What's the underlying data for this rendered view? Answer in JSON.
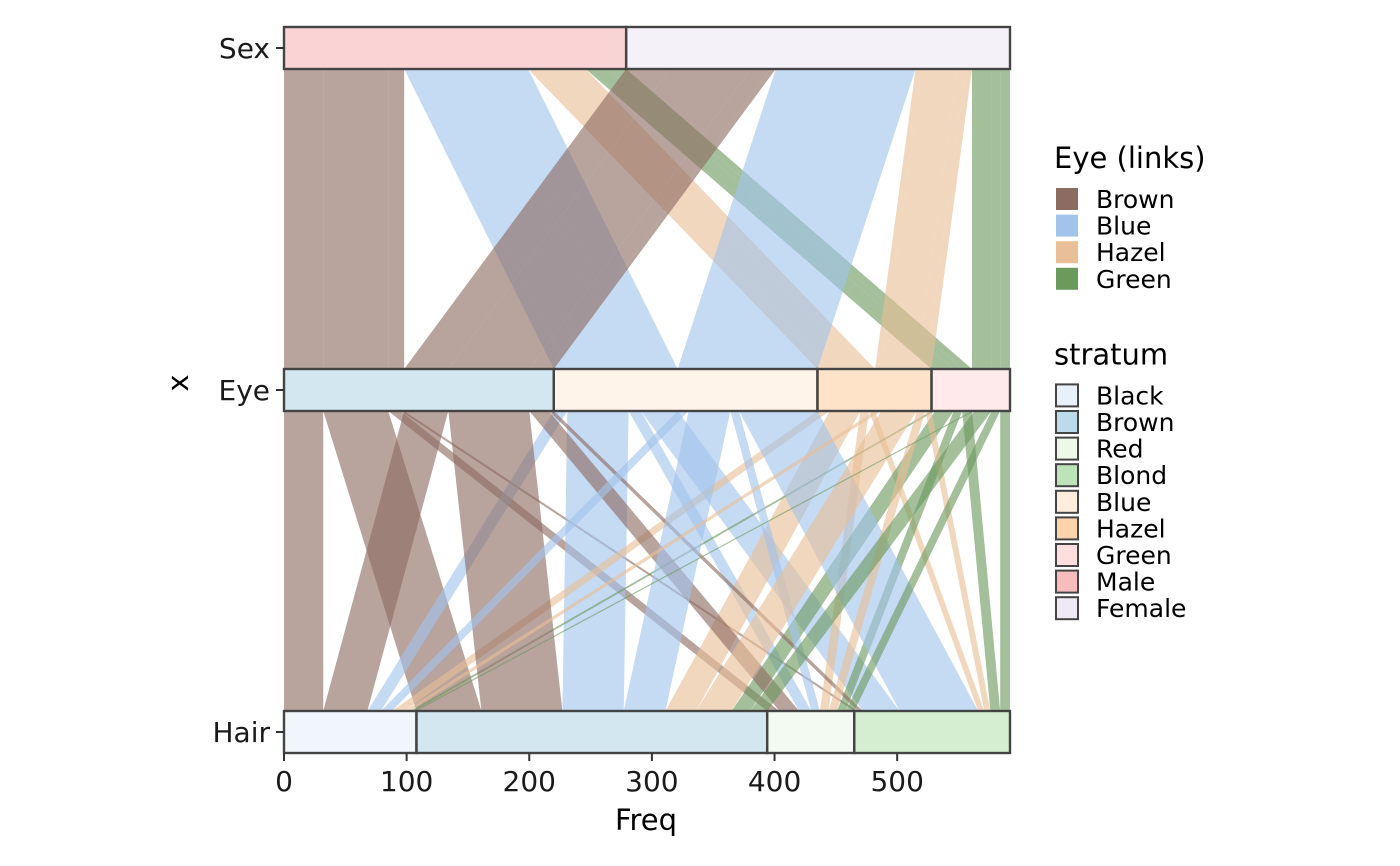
{
  "chart_data": {
    "type": "alluvial",
    "xlabel": "Freq",
    "ylabel": "x",
    "xlim": [
      0,
      592
    ],
    "x_ticks": [
      0,
      100,
      200,
      300,
      400,
      500
    ],
    "axes": [
      "Sex",
      "Eye",
      "Hair"
    ],
    "grid": false,
    "legend_position": "right",
    "legends": [
      {
        "title": "Eye (links)",
        "entries": [
          {
            "label": "Brown",
            "color": "#8c6b61"
          },
          {
            "label": "Blue",
            "color": "#a2c4ec"
          },
          {
            "label": "Hazel",
            "color": "#e8bf96"
          },
          {
            "label": "Green",
            "color": "#6b9a5d"
          }
        ]
      },
      {
        "title": "stratum",
        "entries": [
          {
            "label": "Black",
            "color": "#deebf7"
          },
          {
            "label": "Brown",
            "color": "#9ecae1"
          },
          {
            "label": "Red",
            "color": "#e5f5e0"
          },
          {
            "label": "Blond",
            "color": "#a1d99b"
          },
          {
            "label": "Blue",
            "color": "#fee6ce"
          },
          {
            "label": "Hazel",
            "color": "#fdc087"
          },
          {
            "label": "Green",
            "color": "#fdd0d0"
          },
          {
            "label": "Male",
            "color": "#f4a0a0"
          },
          {
            "label": "Female",
            "color": "#e8e0f0"
          }
        ]
      }
    ],
    "eye_colors": {
      "Brown": "#8c6b61",
      "Blue": "#a2c4ec",
      "Hazel": "#e8bf96",
      "Green": "#6b9a5d"
    },
    "series": [
      {
        "sex": "Male",
        "eye": "Brown",
        "hair": "Black",
        "value": 32
      },
      {
        "sex": "Male",
        "eye": "Brown",
        "hair": "Brown",
        "value": 53
      },
      {
        "sex": "Male",
        "eye": "Brown",
        "hair": "Red",
        "value": 10
      },
      {
        "sex": "Male",
        "eye": "Brown",
        "hair": "Blond",
        "value": 3
      },
      {
        "sex": "Male",
        "eye": "Blue",
        "hair": "Black",
        "value": 11
      },
      {
        "sex": "Male",
        "eye": "Blue",
        "hair": "Brown",
        "value": 50
      },
      {
        "sex": "Male",
        "eye": "Blue",
        "hair": "Red",
        "value": 10
      },
      {
        "sex": "Male",
        "eye": "Blue",
        "hair": "Blond",
        "value": 30
      },
      {
        "sex": "Male",
        "eye": "Hazel",
        "hair": "Black",
        "value": 10
      },
      {
        "sex": "Male",
        "eye": "Hazel",
        "hair": "Brown",
        "value": 25
      },
      {
        "sex": "Male",
        "eye": "Hazel",
        "hair": "Red",
        "value": 7
      },
      {
        "sex": "Male",
        "eye": "Hazel",
        "hair": "Blond",
        "value": 5
      },
      {
        "sex": "Male",
        "eye": "Green",
        "hair": "Black",
        "value": 3
      },
      {
        "sex": "Male",
        "eye": "Green",
        "hair": "Brown",
        "value": 15
      },
      {
        "sex": "Male",
        "eye": "Green",
        "hair": "Red",
        "value": 7
      },
      {
        "sex": "Male",
        "eye": "Green",
        "hair": "Blond",
        "value": 8
      },
      {
        "sex": "Female",
        "eye": "Brown",
        "hair": "Black",
        "value": 36
      },
      {
        "sex": "Female",
        "eye": "Brown",
        "hair": "Brown",
        "value": 66
      },
      {
        "sex": "Female",
        "eye": "Brown",
        "hair": "Red",
        "value": 16
      },
      {
        "sex": "Female",
        "eye": "Brown",
        "hair": "Blond",
        "value": 4
      },
      {
        "sex": "Female",
        "eye": "Blue",
        "hair": "Black",
        "value": 9
      },
      {
        "sex": "Female",
        "eye": "Blue",
        "hair": "Brown",
        "value": 34
      },
      {
        "sex": "Female",
        "eye": "Blue",
        "hair": "Red",
        "value": 7
      },
      {
        "sex": "Female",
        "eye": "Blue",
        "hair": "Blond",
        "value": 64
      },
      {
        "sex": "Female",
        "eye": "Hazel",
        "hair": "Black",
        "value": 5
      },
      {
        "sex": "Female",
        "eye": "Hazel",
        "hair": "Brown",
        "value": 29
      },
      {
        "sex": "Female",
        "eye": "Hazel",
        "hair": "Red",
        "value": 7
      },
      {
        "sex": "Female",
        "eye": "Hazel",
        "hair": "Blond",
        "value": 5
      },
      {
        "sex": "Female",
        "eye": "Green",
        "hair": "Black",
        "value": 2
      },
      {
        "sex": "Female",
        "eye": "Green",
        "hair": "Brown",
        "value": 14
      },
      {
        "sex": "Female",
        "eye": "Green",
        "hair": "Red",
        "value": 7
      },
      {
        "sex": "Female",
        "eye": "Green",
        "hair": "Blond",
        "value": 8
      }
    ]
  }
}
